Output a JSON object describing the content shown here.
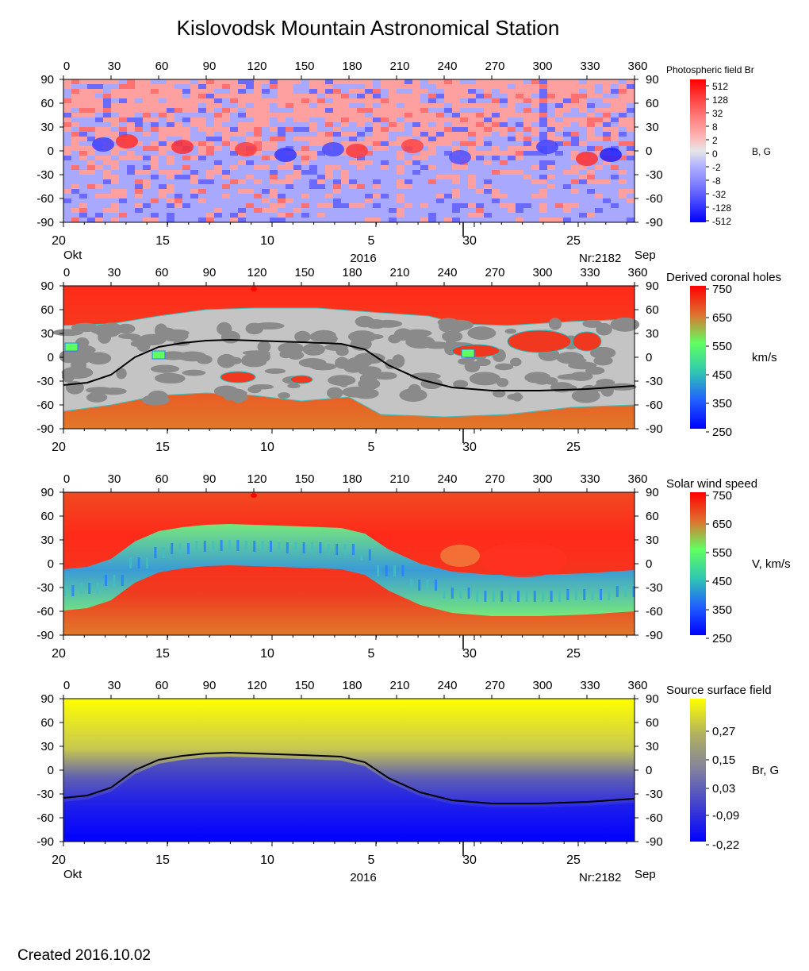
{
  "title": "Kislovodsk Mountain Astronomical Station",
  "created_label": "Created  2016.10.02",
  "bottom_axis": {
    "ticks": [
      "20",
      "15",
      "10",
      "5",
      "30",
      "25"
    ],
    "month_left": "Okt",
    "month_right": "Sep",
    "year": "2016",
    "rotation": "Nr:2182"
  },
  "colors": {
    "red": "#ff2a1a",
    "orange": "#e0782a",
    "grey_light": "#c4c4c4",
    "grey_dark": "#8a8a8a",
    "yellow": "#ffff00",
    "blue": "#0000ff",
    "pink": "#ffa0a0",
    "lightblue": "#a8a8ff"
  },
  "chart_data": [
    {
      "type": "heatmap",
      "title": "Photospheric field Br",
      "unit_label": "B, G",
      "x_ticks": [
        "0",
        "30",
        "60",
        "90",
        "120",
        "150",
        "180",
        "210",
        "240",
        "270",
        "300",
        "330",
        "360"
      ],
      "y_ticks": [
        "90",
        "60",
        "30",
        "0",
        "-30",
        "-60",
        "-90"
      ],
      "xlim": [
        0,
        360
      ],
      "ylim": [
        -90,
        90
      ],
      "colorbar": {
        "labels": [
          "512",
          "128",
          "32",
          "8",
          "2",
          "0",
          "-2",
          "-8",
          "-32",
          "-128",
          "-512"
        ],
        "colors": [
          "#ff0000",
          "#ff3030",
          "#ff6060",
          "#ff8c8c",
          "#ffb4b4",
          "#e6e6e6",
          "#b4b4ff",
          "#8c8cff",
          "#6060ff",
          "#3030ff",
          "#0000ff"
        ]
      }
    },
    {
      "type": "heatmap",
      "title": "Derived coronal holes",
      "unit_label": "km/s",
      "x_ticks": [
        "0",
        "30",
        "60",
        "90",
        "120",
        "150",
        "180",
        "210",
        "240",
        "270",
        "300",
        "330",
        "360"
      ],
      "y_ticks": [
        "90",
        "60",
        "30",
        "0",
        "-30",
        "-60",
        "-90"
      ],
      "xlim": [
        0,
        360
      ],
      "ylim": [
        -90,
        90
      ],
      "colorbar": {
        "labels": [
          "750",
          "650",
          "550",
          "450",
          "350",
          "250"
        ],
        "colors": [
          "#ff0000",
          "#e07030",
          "#60ff60",
          "#30c8b0",
          "#2060ff",
          "#0000ff"
        ]
      },
      "neutral_line_lat": [
        [
          0,
          -35
        ],
        [
          15,
          -32
        ],
        [
          30,
          -22
        ],
        [
          45,
          0
        ],
        [
          60,
          13
        ],
        [
          75,
          18
        ],
        [
          90,
          21
        ],
        [
          105,
          22
        ],
        [
          120,
          21
        ],
        [
          150,
          19
        ],
        [
          175,
          17
        ],
        [
          190,
          10
        ],
        [
          205,
          -10
        ],
        [
          225,
          -28
        ],
        [
          245,
          -38
        ],
        [
          270,
          -42
        ],
        [
          300,
          -42
        ],
        [
          330,
          -40
        ],
        [
          360,
          -36
        ]
      ]
    },
    {
      "type": "heatmap",
      "title": "Solar wind speed",
      "unit_label": "V, km/s",
      "x_ticks": [
        "0",
        "30",
        "60",
        "90",
        "120",
        "150",
        "180",
        "210",
        "240",
        "270",
        "300",
        "330",
        "360"
      ],
      "y_ticks": [
        "90",
        "60",
        "30",
        "0",
        "-30",
        "-60",
        "-90"
      ],
      "xlim": [
        0,
        360
      ],
      "ylim": [
        -90,
        90
      ],
      "colorbar": {
        "labels": [
          "750",
          "650",
          "550",
          "450",
          "350",
          "250"
        ],
        "colors": [
          "#ff0000",
          "#e07030",
          "#60ff60",
          "#30c8b0",
          "#2060ff",
          "#0000ff"
        ]
      }
    },
    {
      "type": "heatmap",
      "title": "Source surface field",
      "unit_label": "Br, G",
      "x_ticks": [
        "0",
        "30",
        "60",
        "90",
        "120",
        "150",
        "180",
        "210",
        "240",
        "270",
        "300",
        "330",
        "360"
      ],
      "y_ticks": [
        "90",
        "60",
        "30",
        "0",
        "-30",
        "-60",
        "-90"
      ],
      "xlim": [
        0,
        360
      ],
      "ylim": [
        -90,
        90
      ],
      "colorbar": {
        "labels": [
          "0,27",
          "0,15",
          "0,03",
          "-0,09",
          "-0,22"
        ],
        "colors": [
          "#ffff00",
          "#b0b060",
          "#8080a0",
          "#4040d0",
          "#0000ff"
        ]
      },
      "neutral_line_lat": [
        [
          0,
          -35
        ],
        [
          15,
          -32
        ],
        [
          30,
          -22
        ],
        [
          45,
          0
        ],
        [
          60,
          13
        ],
        [
          75,
          18
        ],
        [
          90,
          21
        ],
        [
          105,
          22
        ],
        [
          120,
          21
        ],
        [
          150,
          19
        ],
        [
          175,
          17
        ],
        [
          190,
          10
        ],
        [
          205,
          -10
        ],
        [
          225,
          -28
        ],
        [
          245,
          -38
        ],
        [
          270,
          -42
        ],
        [
          300,
          -42
        ],
        [
          330,
          -40
        ],
        [
          360,
          -36
        ]
      ]
    }
  ]
}
